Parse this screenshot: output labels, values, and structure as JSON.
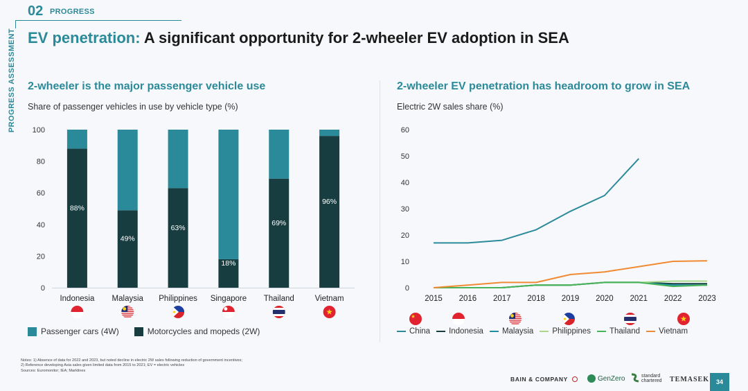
{
  "header": {
    "section_number": "02",
    "section_label": "PROGRESS",
    "side_label": "PROGRESS ASSESSMENT",
    "title_accent": "EV penetration:",
    "title_rest": " A significant opportunity for 2-wheeler EV adoption in SEA"
  },
  "left_panel": {
    "title": "2-wheeler is the major passenger vehicle use",
    "caption": "Share of passenger vehicles in use by vehicle type (%)",
    "legend": [
      {
        "label": "Passenger cars (4W)",
        "color": "#2b8a99"
      },
      {
        "label": "Motorcycles and mopeds (2W)",
        "color": "#173d40"
      }
    ]
  },
  "right_panel": {
    "title": "2-wheeler EV penetration has headroom to grow in SEA",
    "caption": "Electric 2W sales share (%)"
  },
  "chart_data": [
    {
      "type": "bar",
      "stacked": true,
      "title": "2-wheeler is the major passenger vehicle use",
      "ylabel": "Share of passenger vehicles in use by vehicle type (%)",
      "ylim": [
        0,
        100
      ],
      "yticks": [
        0,
        20,
        40,
        60,
        80,
        100
      ],
      "categories": [
        "Indonesia",
        "Malaysia",
        "Philippines",
        "Singapore",
        "Thailand",
        "Vietnam"
      ],
      "flags": [
        "indonesia",
        "malaysia",
        "philippines",
        "singapore",
        "thailand",
        "vietnam"
      ],
      "series": [
        {
          "name": "Motorcycles and mopeds (2W)",
          "color": "#173d40",
          "values": [
            88,
            49,
            63,
            18,
            69,
            96
          ],
          "labels": [
            "88%",
            "49%",
            "63%",
            "18%",
            "69%",
            "96%"
          ]
        },
        {
          "name": "Passenger cars (4W)",
          "color": "#2b8a99",
          "values": [
            12,
            51,
            37,
            82,
            31,
            4
          ]
        }
      ]
    },
    {
      "type": "line",
      "title": "2-wheeler EV penetration has headroom to grow in SEA",
      "ylabel": "Electric 2W sales share (%)",
      "ylim": [
        0,
        60
      ],
      "yticks": [
        0,
        10,
        20,
        30,
        40,
        50,
        60
      ],
      "x": [
        2015,
        2016,
        2017,
        2018,
        2019,
        2020,
        2021,
        2022,
        2023
      ],
      "flags": [
        "china",
        "indonesia",
        "malaysia",
        "philippines",
        "thailand",
        "vietnam"
      ],
      "series": [
        {
          "name": "China",
          "color": "#2b8a99",
          "values": [
            17,
            17,
            18,
            22,
            29,
            35,
            49,
            null,
            null
          ]
        },
        {
          "name": "Indonesia",
          "color": "#173d40",
          "values": [
            0,
            0,
            0,
            1,
            1,
            2,
            2,
            1.5,
            1.5
          ]
        },
        {
          "name": "Malaysia",
          "color": "#1f8f9f",
          "values": [
            0,
            0,
            0,
            1,
            1,
            2,
            2,
            1,
            1
          ]
        },
        {
          "name": "Philippines",
          "color": "#a8d98a",
          "values": [
            0,
            0,
            0,
            1,
            1,
            2,
            2,
            2.5,
            2.5
          ]
        },
        {
          "name": "Thailand",
          "color": "#49b35a",
          "values": [
            0,
            0,
            0,
            1,
            1,
            2,
            2,
            0.5,
            1
          ]
        },
        {
          "name": "Vietnam",
          "color": "#f08a33",
          "values": [
            0,
            1,
            2,
            2,
            5,
            6,
            8,
            10,
            10.2
          ]
        }
      ]
    }
  ],
  "notes": [
    "Notes: 1) Absence of data for 2022 and 2023, but noted decline in electric 2W sales following reduction of government incentives;",
    "2) Reference developing Asia sales given limited data from 2015 to 2021; EV = electric vehicles",
    "Sources: Euromonitor; IEA; Marklines"
  ],
  "footer": {
    "bain": "BAIN & COMPANY",
    "genzero": "GenZero",
    "stanchart_1": "standard",
    "stanchart_2": "chartered",
    "temasek": "TEMASEK",
    "page": "34"
  }
}
